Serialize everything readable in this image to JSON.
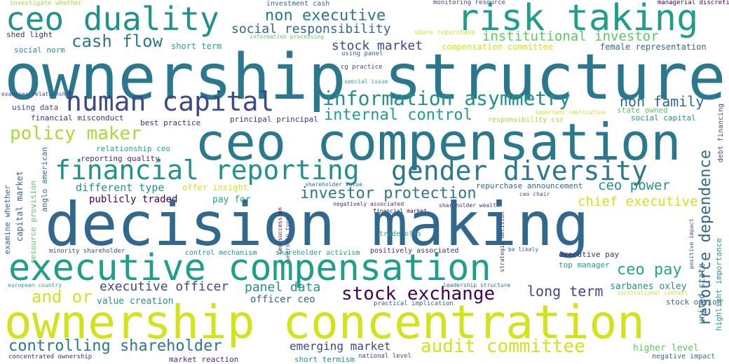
{
  "colors": {
    "background": "#ffffff",
    "yellow": "#d2e21b",
    "yellow_green": "#a5db36",
    "green": "#5cc863",
    "teal_green": "#22a884",
    "teal": "#1f9e89",
    "teal_blue": "#21918c",
    "blue_teal": "#2a788e",
    "blue": "#31688e",
    "indigo": "#3e4989",
    "violet": "#472d7b",
    "dark_purple": "#440154"
  },
  "words": {
    "decision_making": "decision making",
    "ownership_structure": "ownership structure",
    "ownership_concentration": "ownership concentration",
    "ceo_compensation": "ceo compensation",
    "executive_compensation": "executive compensation",
    "ceo_duality": "ceo duality",
    "risk_taking": "risk taking",
    "human_capital": "human capital",
    "financial_reporting": "financial reporting",
    "gender_diversity": "gender diversity",
    "information_asymmetry": "information asymmetry",
    "non_executive": "non executive",
    "policy_maker": "policy maker",
    "audit_committee": "audit committee",
    "investor_protection": "investor protection",
    "stock_exchange": "stock exchange",
    "controlling_shareholder": "controlling shareholder",
    "internal_control": "internal control",
    "social_responsibility": "social responsibility",
    "cash_flow": "cash flow",
    "stock_market": "stock market",
    "institutional_investor": "institutional investor",
    "non_family": "non family",
    "ceo_power": "ceo power",
    "chief_executive": "chief executive",
    "ceo_pay": "ceo pay",
    "resource_dependence": "resource dependence",
    "executive_officer": "executive officer",
    "panel_data": "panel data",
    "long_term": "long term",
    "and_or": "and or",
    "emerging_market": "emerging market",
    "sarbanes_oxley": "sarbanes oxley",
    "higher_level": "higher level",
    "officer_ceo": "officer ceo",
    "value_creation": "value creation",
    "different_type": "different type",
    "publicly_traded": "publicly traded",
    "pay_for": "pay for",
    "relationship_ceo": "relationship ceo",
    "reporting_quality": "reporting quality",
    "best_practice": "best practice",
    "principal_principal": "principal principal",
    "financial_misconduct": "financial misconduct",
    "using_data": "using data",
    "compensation_committee": "compensation committee",
    "female_representation": "female representation",
    "short_term": "short term",
    "shed_light": "shed light",
    "social_norm": "social norm",
    "investigate_whether": "investigate whether",
    "investment_cash": "investment cash",
    "monitoring_resource": "monitoring resource",
    "managerial_discretion": "managerial discretion",
    "share_repurchase": "share repurchase",
    "information_processing": "information processing",
    "using_panel": "using panel",
    "cg_practice": "cg practice",
    "special_issue": "special issue",
    "examines_relationship": "examines relationship",
    "state_owned": "state owned",
    "social_capital": "social capital",
    "responsibility_csr": "responsibility csr",
    "important_implication": "important implication",
    "debt_financing": "debt financing",
    "offer_insight": "offer insight",
    "repurchase_announcement": "repurchase announcement",
    "shareholder_value": "shareholder value",
    "negatively_associated": "negatively associated",
    "shareholder_wealth": "shareholder wealth",
    "financial_market": "financial market",
    "ceo_chair": "ceo chair",
    "trade_offs": "trade offs",
    "positively_associated": "positively associated",
    "be_likely": "be likely",
    "executive_pay": "executive pay",
    "top_manager": "top manager",
    "control_mechanism": "control mechanism",
    "shareholder_activism": "shareholder activism",
    "minority_shareholder": "minority shareholder",
    "european_country": "european country",
    "leadership_structure": "leadership structure",
    "practical_implication": "practical implication",
    "institutional_context": "institutional context",
    "stock_option": "stock option",
    "concentrated_ownership": "concentrated ownership",
    "market_reaction": "market reaction",
    "short_termism": "short termism",
    "national_level": "national level",
    "negative_impact": "negative impact",
    "examine_whether": "examine whether",
    "capital_market": "capital market",
    "anglo_american": "anglo american",
    "resource_provision": "resource provision",
    "ceo_succession": "ceo succession",
    "ownership_type": "ownership type",
    "strategic_decision": "strategic decision",
    "positive_impact": "positive impact",
    "united_state": "united state",
    "highlight_importance": "highlight importance"
  }
}
